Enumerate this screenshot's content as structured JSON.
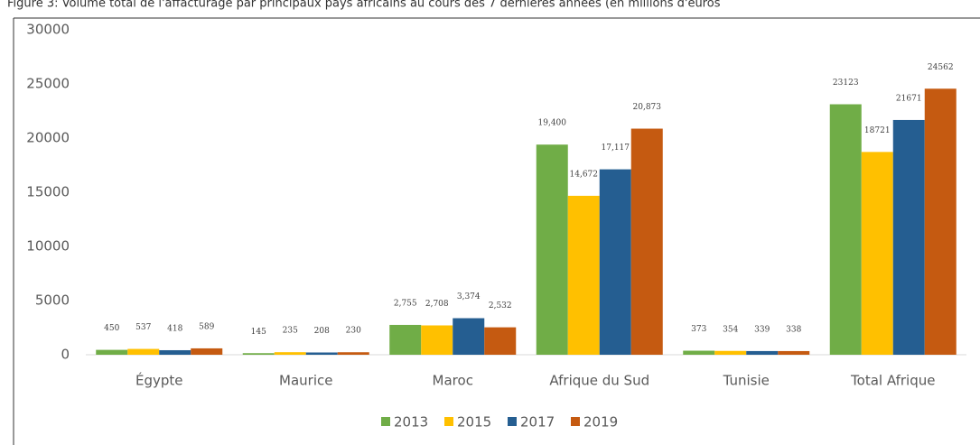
{
  "chart_data": {
    "type": "bar",
    "title": "Figure 3: Volume total de l'affacturage par principaux pays africains au cours des 7 dernières années (en millions d'euros",
    "categories": [
      "Égypte",
      "Maurice",
      "Maroc",
      "Afrique du Sud",
      "Tunisie",
      "Total Afrique"
    ],
    "series": [
      {
        "name": "2013",
        "color": "#70ad47",
        "values": [
          450,
          145,
          2755,
          19400,
          373,
          23123
        ],
        "value_labels": [
          "450",
          "145",
          "2,755",
          "19,400",
          "373",
          "23123"
        ]
      },
      {
        "name": "2015",
        "color": "#ffc000",
        "values": [
          537,
          235,
          2708,
          14672,
          354,
          18721
        ],
        "value_labels": [
          "537",
          "235",
          "2,708",
          "14,672",
          "354",
          "18721"
        ]
      },
      {
        "name": "2017",
        "color": "#255e91",
        "values": [
          418,
          208,
          3374,
          17117,
          339,
          21671
        ],
        "value_labels": [
          "418",
          "208",
          "3,374",
          "17,117",
          "339",
          "21671"
        ]
      },
      {
        "name": "2019",
        "color": "#c55a11",
        "values": [
          589,
          230,
          2532,
          20873,
          338,
          24562
        ],
        "value_labels": [
          "589",
          "230",
          "2,532",
          "20,873",
          "338",
          "24562"
        ]
      }
    ],
    "ylim": [
      0,
      30000
    ],
    "yticks": [
      0,
      5000,
      10000,
      15000,
      20000,
      25000,
      30000
    ],
    "grid": false,
    "legend": "bottom"
  }
}
